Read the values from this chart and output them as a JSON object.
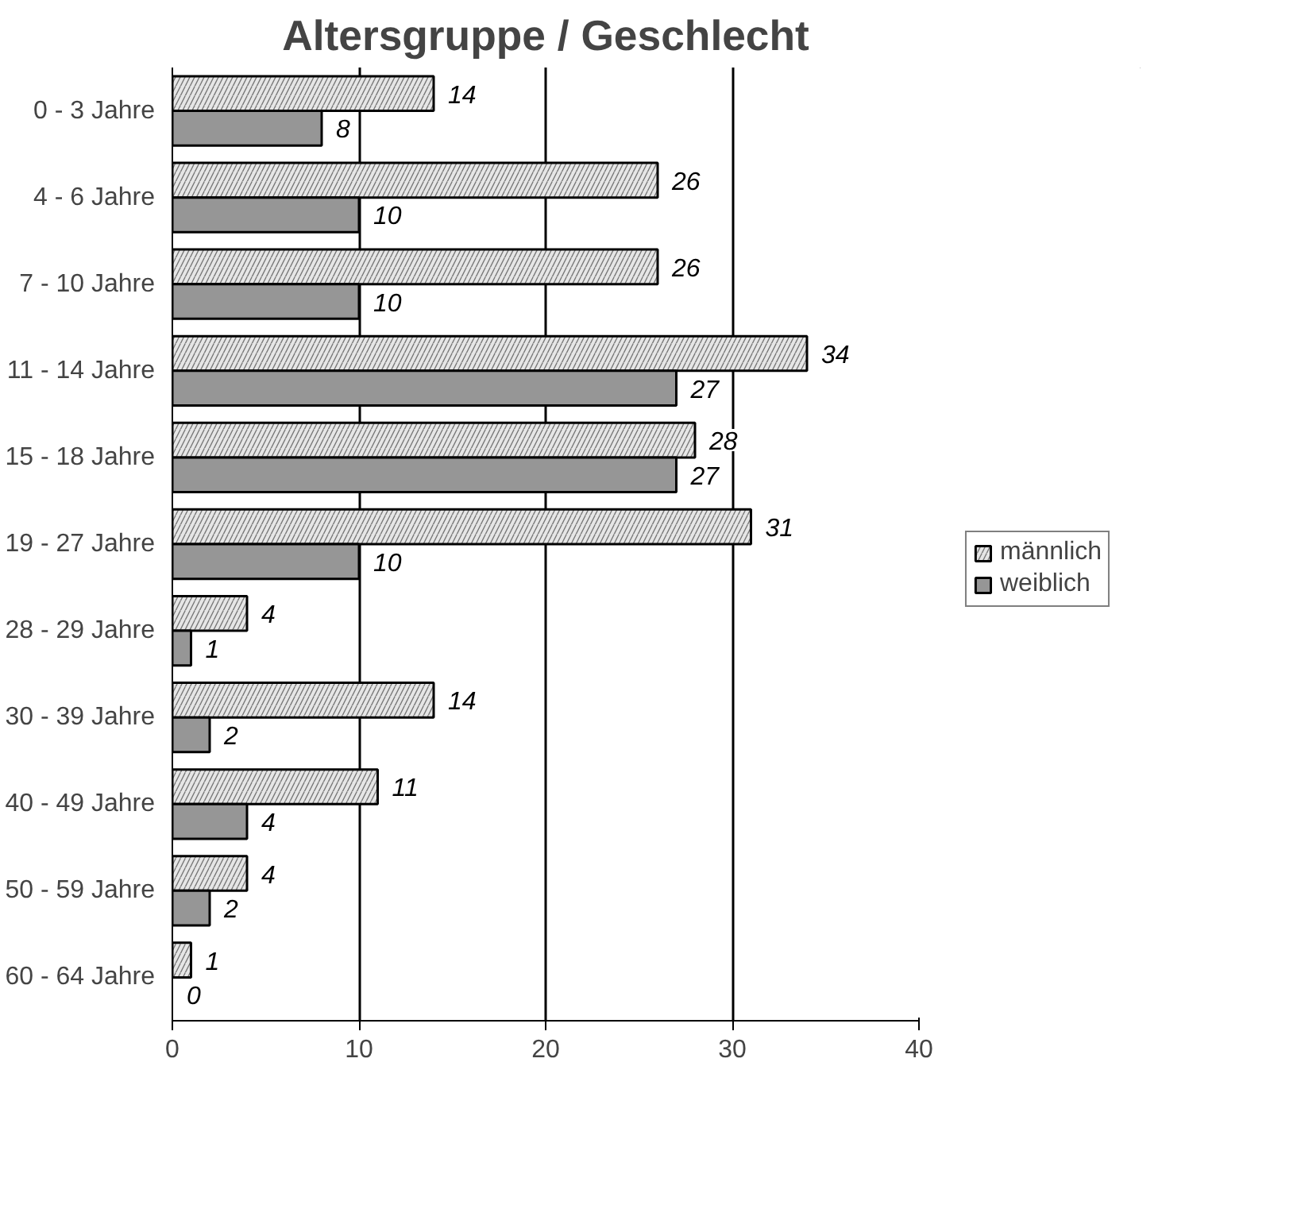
{
  "chart_data": {
    "type": "bar",
    "orientation": "horizontal",
    "title": "Altersgruppe / Geschlecht",
    "categories": [
      "0 - 3 Jahre",
      "4 - 6 Jahre",
      "7 - 10 Jahre",
      "11 - 14 Jahre",
      "15 - 18 Jahre",
      "19 - 27 Jahre",
      "28 - 29 Jahre",
      "30 - 39 Jahre",
      "40 - 49 Jahre",
      "50 - 59 Jahre",
      "60 - 64 Jahre"
    ],
    "series": [
      {
        "name": "männlich",
        "color": "#e6e6e6",
        "values": [
          14,
          26,
          26,
          34,
          28,
          31,
          4,
          14,
          11,
          4,
          1
        ]
      },
      {
        "name": "weiblich",
        "color": "#969696",
        "values": [
          8,
          10,
          10,
          27,
          27,
          10,
          1,
          2,
          4,
          2,
          0
        ]
      }
    ],
    "xlim": [
      0,
      40
    ],
    "xticks": [
      0,
      10,
      20,
      30,
      40
    ],
    "grid": "x",
    "legend": "right",
    "data_labels": true
  }
}
